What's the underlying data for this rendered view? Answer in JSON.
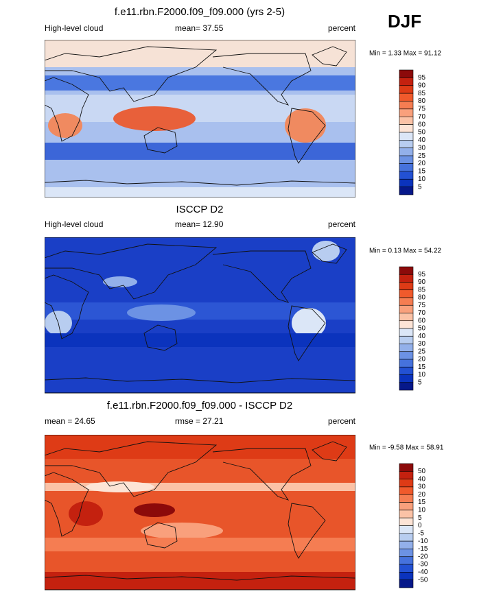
{
  "header": {
    "season": "DJF"
  },
  "panels": [
    {
      "title": "f.e11.rbn.F2000.f09_f09.000 (yrs 2-5)",
      "left": "High-level cloud",
      "center": "mean=  37.55",
      "right": "percent",
      "range": "Min =   1.33 Max =  91.12",
      "colorbar": {
        "labels": [
          "95",
          "90",
          "85",
          "80",
          "75",
          "70",
          "60",
          "50",
          "40",
          "30",
          "25",
          "20",
          "15",
          "10",
          "5"
        ],
        "colors": [
          "#8c0a0a",
          "#c4210f",
          "#de3b16",
          "#f05a2c",
          "#f57d52",
          "#f9a07c",
          "#fbc2a6",
          "#fde4d6",
          "#dbe6f7",
          "#b8cdf0",
          "#93b0ea",
          "#6c92e4",
          "#4672dd",
          "#2351d3",
          "#0b33bd",
          "#06188a"
        ]
      }
    },
    {
      "title": "ISCCP D2",
      "left": "High-level cloud",
      "center": "mean=  12.90",
      "right": "percent",
      "range": "Min =   0.13 Max =  54.22",
      "colorbar": {
        "labels": [
          "95",
          "90",
          "85",
          "80",
          "75",
          "70",
          "60",
          "50",
          "40",
          "30",
          "25",
          "20",
          "15",
          "10",
          "5"
        ],
        "colors": [
          "#8c0a0a",
          "#c4210f",
          "#de3b16",
          "#f05a2c",
          "#f57d52",
          "#f9a07c",
          "#fbc2a6",
          "#fde4d6",
          "#dbe6f7",
          "#b8cdf0",
          "#93b0ea",
          "#6c92e4",
          "#4672dd",
          "#2351d3",
          "#0b33bd",
          "#06188a"
        ]
      }
    },
    {
      "title": "f.e11.rbn.F2000.f09_f09.000 - ISCCP D2",
      "left": "mean =  24.65",
      "center": "rmse =  27.21",
      "right": "percent",
      "range": "Min =  -9.58 Max =  58.91",
      "colorbar": {
        "labels": [
          "50",
          "40",
          "30",
          "20",
          "15",
          "10",
          "5",
          "0",
          "-5",
          "-10",
          "-15",
          "-20",
          "-30",
          "-40",
          "-50"
        ],
        "colors": [
          "#8c0a0a",
          "#c4210f",
          "#de3b16",
          "#f05a2c",
          "#f57d52",
          "#f9a07c",
          "#fbc2a6",
          "#fde4d6",
          "#dbe6f7",
          "#b8cdf0",
          "#93b0ea",
          "#6c92e4",
          "#4672dd",
          "#2351d3",
          "#0b33bd",
          "#06188a"
        ]
      }
    }
  ]
}
